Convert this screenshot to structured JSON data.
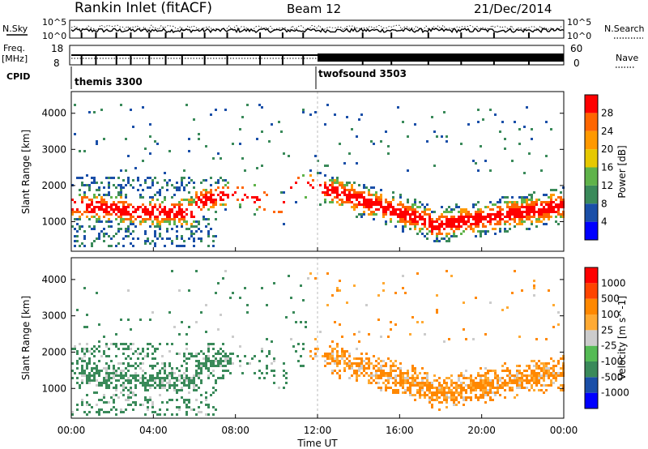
{
  "header": {
    "station": "Rankin Inlet (fitACF)",
    "beam": "Beam 12",
    "date": "21/Dec/2014"
  },
  "aux_panels": {
    "nsky_label": "N.Sky",
    "nsearch_label": "N.Search",
    "nsky_ticks": [
      "10^5",
      "10^0"
    ],
    "nsearch_ticks": [
      "10^5",
      "10^0"
    ],
    "freq_label": "Freq.",
    "freq_unit": "[MHz]",
    "freq_ticks": [
      "18",
      "8"
    ],
    "nave_label": "Nave",
    "nave_ticks": [
      "60",
      "0"
    ],
    "cpid_label": "CPID",
    "cpid_modes": [
      {
        "name": "themis 3300",
        "start_hour": 0
      },
      {
        "name": "twofsound 3503",
        "start_hour": 12
      }
    ]
  },
  "colors": {
    "power_scale": [
      "#0000ff",
      "#1a4fa8",
      "#3a8a5a",
      "#5fb34a",
      "#e6c800",
      "#ff9900",
      "#ff6600",
      "#ff0000"
    ],
    "velocity_scale": [
      "#ff0000",
      "#ff4400",
      "#ff8800",
      "#ffaa33",
      "#cccccc",
      "#55bb55",
      "#3a8a5a",
      "#1a4fa8",
      "#0000ff"
    ]
  },
  "chart_data": [
    {
      "type": "heatmap",
      "name": "power",
      "ylabel": "Slant Range [km]",
      "yticks": [
        1000,
        2000,
        3000,
        4000
      ],
      "ylim": [
        180,
        4600
      ],
      "colorbar_label": "Power [dB]",
      "colorbar_ticks": [
        4,
        8,
        12,
        16,
        20,
        24,
        28
      ],
      "colorbar_range": [
        0,
        32
      ]
    },
    {
      "type": "heatmap",
      "name": "velocity",
      "ylabel": "Slant Range [km]",
      "yticks": [
        1000,
        2000,
        3000,
        4000
      ],
      "ylim": [
        180,
        4600
      ],
      "colorbar_label": "Velocity [m s^-1]",
      "colorbar_ticks": [
        "1000",
        "500",
        "100",
        "25",
        "-25",
        "-100",
        "-500",
        "-1000"
      ]
    }
  ],
  "xaxis": {
    "label": "Time UT",
    "ticks": [
      "00:00",
      "04:00",
      "08:00",
      "12:00",
      "16:00",
      "20:00",
      "00:00"
    ],
    "range_hours": [
      0,
      24
    ]
  }
}
